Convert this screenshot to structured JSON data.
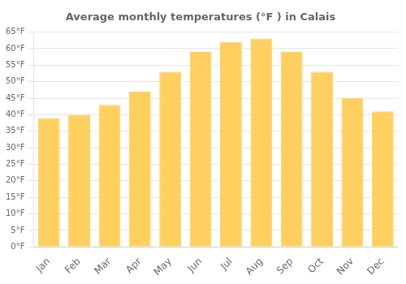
{
  "chart_data": {
    "type": "bar",
    "title": "Average monthly temperatures (°F ) in Calais",
    "categories": [
      "Jan",
      "Feb",
      "Mar",
      "Apr",
      "May",
      "Jun",
      "Jul",
      "Aug",
      "Sep",
      "Oct",
      "Nov",
      "Dec"
    ],
    "values": [
      39,
      40,
      43,
      47,
      53,
      59,
      62,
      63,
      59,
      53,
      45,
      41
    ],
    "color": "#FFD060",
    "ylim": [
      0,
      65
    ],
    "yticks": [
      {
        "value": 0,
        "label": "0°F"
      },
      {
        "value": 5,
        "label": "5°F"
      },
      {
        "value": 10,
        "label": "10°F"
      },
      {
        "value": 15,
        "label": "15°F"
      },
      {
        "value": 20,
        "label": "20°F"
      },
      {
        "value": 25,
        "label": "25°F"
      },
      {
        "value": 30,
        "label": "30°F"
      },
      {
        "value": 35,
        "label": "35°F"
      },
      {
        "value": 40,
        "label": "40°F"
      },
      {
        "value": 45,
        "label": "45°F"
      },
      {
        "value": 50,
        "label": "50°F"
      },
      {
        "value": 55,
        "label": "55°F"
      },
      {
        "value": 60,
        "label": "60°F"
      },
      {
        "value": 65,
        "label": "65°F"
      }
    ],
    "grid": true
  }
}
